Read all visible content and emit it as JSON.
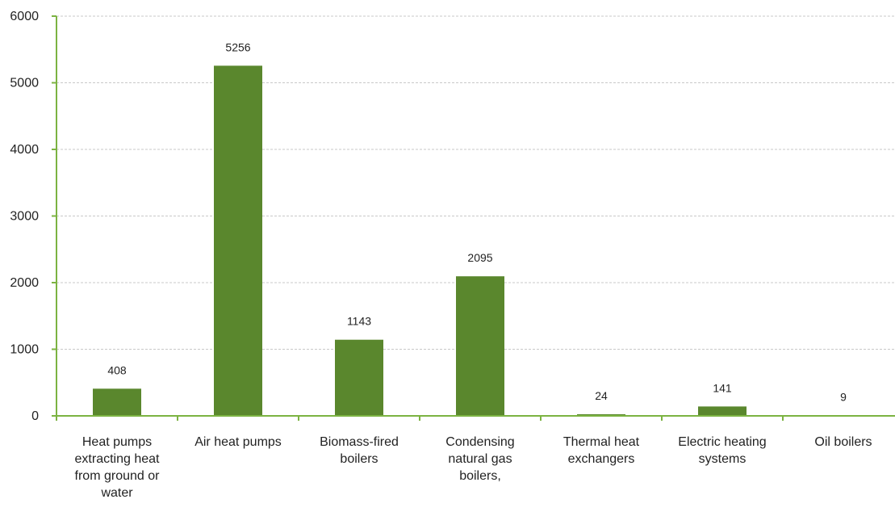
{
  "chart_data": {
    "type": "bar",
    "categories": [
      "Heat pumps extracting heat from ground or water",
      "Air heat pumps",
      "Biomass-fired boilers",
      "Condensing natural gas boilers,",
      "Thermal heat exchangers",
      "Electric heating systems",
      "Oil boilers"
    ],
    "category_lines": [
      [
        "Heat pumps",
        "extracting heat",
        "from ground or",
        "water"
      ],
      [
        "Air heat pumps"
      ],
      [
        "Biomass-fired",
        "boilers"
      ],
      [
        "Condensing",
        "natural gas",
        "boilers,"
      ],
      [
        "Thermal heat",
        "exchangers"
      ],
      [
        "Electric heating",
        "systems"
      ],
      [
        "Oil boilers"
      ]
    ],
    "values": [
      408,
      5256,
      1143,
      2095,
      24,
      141,
      9
    ],
    "ylim": [
      0,
      6000
    ],
    "yticks": [
      0,
      1000,
      2000,
      3000,
      4000,
      5000,
      6000
    ],
    "title": "",
    "xlabel": "",
    "ylabel": "",
    "grid": true,
    "bar_color": "#5a872d",
    "axis_color": "#7cb342",
    "grid_color": "#c8c8c8"
  }
}
